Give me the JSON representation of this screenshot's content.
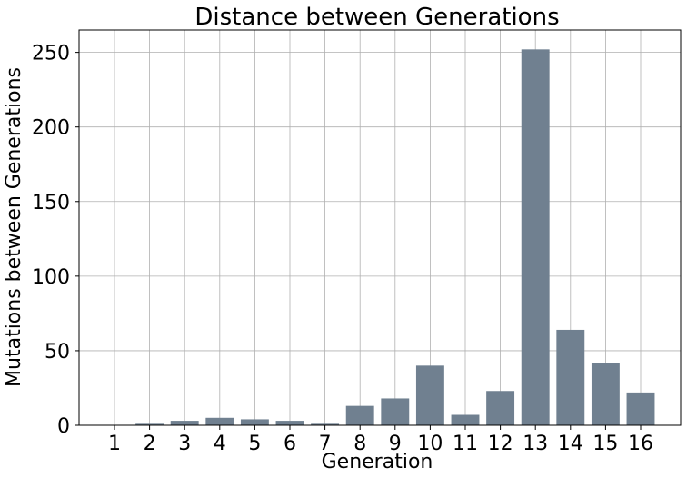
{
  "chart_data": {
    "type": "bar",
    "title": "Distance between Generations",
    "xlabel": "Generation",
    "ylabel": "Mutations between Generations",
    "categories": [
      "1",
      "2",
      "3",
      "4",
      "5",
      "6",
      "7",
      "8",
      "9",
      "10",
      "11",
      "12",
      "13",
      "14",
      "15",
      "16"
    ],
    "values": [
      0,
      1,
      3,
      5,
      4,
      3,
      1,
      13,
      18,
      40,
      7,
      23,
      252,
      64,
      42,
      22
    ],
    "ylim": [
      0,
      265
    ],
    "yticks": [
      0,
      50,
      100,
      150,
      200,
      250
    ],
    "grid": true,
    "bar_color": "#708090"
  }
}
